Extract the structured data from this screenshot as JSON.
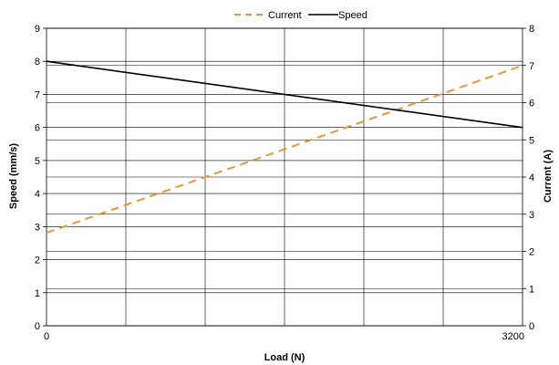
{
  "chart_data": {
    "type": "line",
    "x": [
      0,
      3200
    ],
    "xlabel": "Load (N)",
    "xlim": [
      0,
      3200
    ],
    "x_tick_labels": [
      "0",
      "3200"
    ],
    "x_gridlines": 6,
    "ylabel": "Speed (mm/s)",
    "ylim": [
      0,
      9
    ],
    "y_ticks": [
      "0",
      "1",
      "2",
      "3",
      "4",
      "5",
      "6",
      "7",
      "8",
      "9"
    ],
    "y2label": "Current (A)",
    "y2lim": [
      0,
      8
    ],
    "y2_ticks": [
      "0",
      "1",
      "2",
      "3",
      "4",
      "5",
      "6",
      "7",
      "8"
    ],
    "grid": true,
    "legend_position": "top-center",
    "series": [
      {
        "name": "Current",
        "axis": "right",
        "values": [
          2.5,
          7.0
        ],
        "color": "#E8963C",
        "style": "dashed"
      },
      {
        "name": "Speed",
        "axis": "left",
        "values": [
          8.0,
          6.0
        ],
        "color": "#000000",
        "style": "solid"
      }
    ]
  }
}
